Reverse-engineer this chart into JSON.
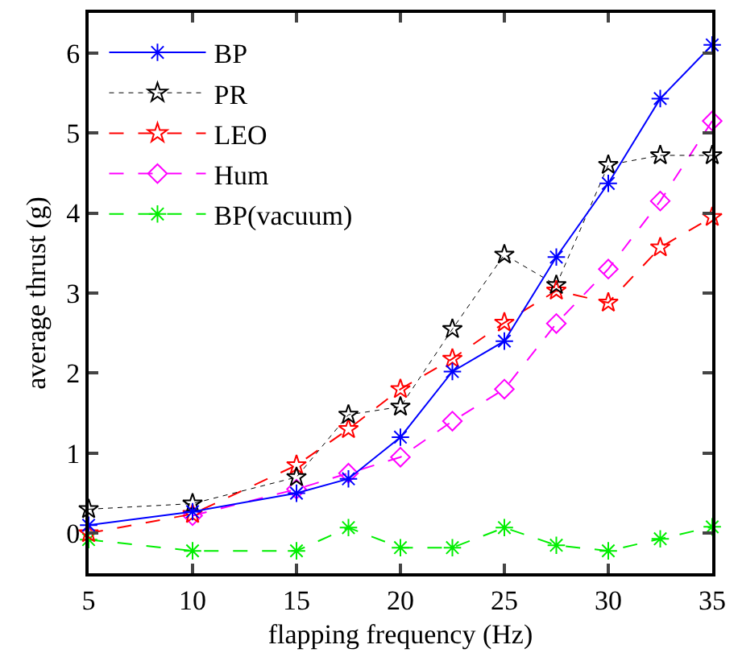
{
  "chart_data": {
    "type": "line",
    "xlabel": "flapping frequency (Hz)",
    "ylabel": "average thrust (g)",
    "xlim": [
      5,
      35
    ],
    "xticks": [
      5,
      10,
      15,
      20,
      25,
      30,
      35
    ],
    "ylim": [
      -0.5,
      6.5
    ],
    "yticks": [
      0,
      1,
      2,
      3,
      4,
      5,
      6
    ],
    "grid": false,
    "legend": "top left",
    "series": [
      {
        "name": "BP",
        "color": "#0000ff",
        "marker": "cross",
        "line_style": "solid",
        "x": [
          5,
          10,
          15,
          17.5,
          20,
          22.5,
          25,
          27.5,
          30,
          32.5,
          35
        ],
        "values": [
          0.1,
          0.27,
          0.5,
          0.68,
          1.2,
          2.02,
          2.4,
          3.45,
          4.37,
          5.43,
          6.1
        ]
      },
      {
        "name": "PR",
        "color": "#000000",
        "marker": "star",
        "line_style": "dotted",
        "x": [
          5,
          10,
          15,
          17.5,
          20,
          22.5,
          25,
          27.5,
          30,
          32.5,
          35
        ],
        "values": [
          0.3,
          0.37,
          0.7,
          1.48,
          1.58,
          2.55,
          3.48,
          3.1,
          4.6,
          4.72,
          4.72
        ]
      },
      {
        "name": "LEO",
        "color": "#ff0000",
        "marker": "star",
        "line_style": "dashed",
        "x": [
          5,
          10,
          15,
          17.5,
          20,
          22.5,
          25,
          27.5,
          30,
          32.5,
          35
        ],
        "values": [
          0.0,
          0.24,
          0.85,
          1.3,
          1.8,
          2.18,
          2.63,
          3.03,
          2.88,
          3.57,
          3.95
        ]
      },
      {
        "name": "Hum",
        "color": "#ff00ff",
        "marker": "diamond",
        "line_style": "dashed",
        "x": [
          10,
          15,
          17.5,
          20,
          22.5,
          25,
          27.5,
          30,
          32.5,
          35
        ],
        "values": [
          0.22,
          0.55,
          0.75,
          0.95,
          1.4,
          1.8,
          2.62,
          3.3,
          4.15,
          5.15
        ]
      },
      {
        "name": "BP(vacuum)",
        "color": "#00ee00",
        "marker": "cross",
        "line_style": "dashed",
        "x": [
          5,
          10,
          15,
          17.5,
          20,
          22.5,
          25,
          27.5,
          30,
          32.5,
          35
        ],
        "values": [
          -0.08,
          -0.22,
          -0.22,
          0.07,
          -0.18,
          -0.18,
          0.07,
          -0.15,
          -0.22,
          -0.07,
          0.08
        ]
      }
    ]
  }
}
